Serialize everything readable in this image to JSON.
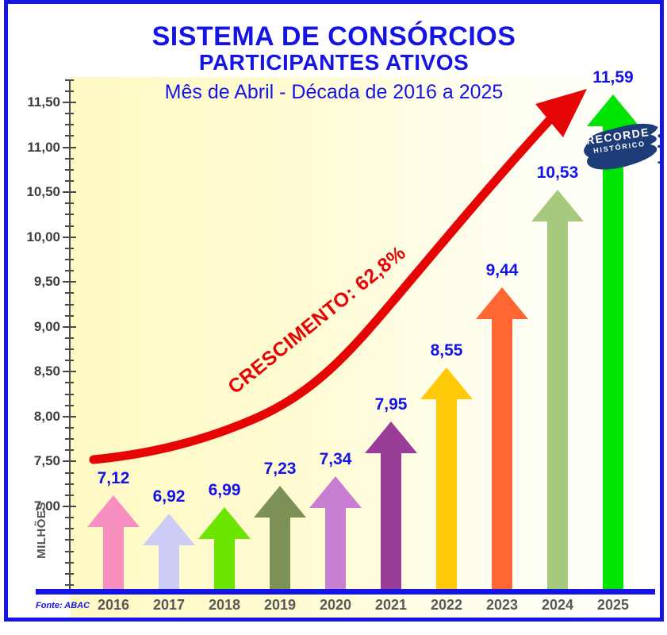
{
  "header": {
    "title": "SISTEMA DE CONSÓRCIOS",
    "subtitle": "PARTICIPANTES ATIVOS",
    "period": "Mês de Abril - Década de 2016 a 2025"
  },
  "chart_data": {
    "type": "bar",
    "title": "SISTEMA DE CONSÓRCIOS - PARTICIPANTES ATIVOS",
    "subtitle": "Mês de Abril - Década de 2016 a 2025",
    "categories": [
      "2016",
      "2017",
      "2018",
      "2019",
      "2020",
      "2021",
      "2022",
      "2023",
      "2024",
      "2025"
    ],
    "values": [
      7.12,
      6.92,
      6.99,
      7.23,
      7.34,
      7.95,
      8.55,
      9.44,
      10.53,
      11.59
    ],
    "value_labels": [
      "7,12",
      "6,92",
      "6,99",
      "7,23",
      "7,34",
      "7,95",
      "8,55",
      "9,44",
      "10,53",
      "11,59"
    ],
    "bar_colors": [
      "#F78FC0",
      "#CCCCF6",
      "#6CE500",
      "#7D9157",
      "#C97FD1",
      "#993D99",
      "#FFC907",
      "#FF6633",
      "#A6C97E",
      "#00E402"
    ],
    "ylabel": "MILHÕES",
    "ylim": [
      6.05,
      11.75
    ],
    "y_major_ticks": [
      7.0,
      7.5,
      8.0,
      8.5,
      9.0,
      9.5,
      10.0,
      10.5,
      11.0,
      11.5
    ],
    "y_major_tick_labels": [
      "7,00",
      "7,50",
      "8,00",
      "8,50",
      "9,00",
      "9,50",
      "10,00",
      "10,50",
      "11,00",
      "11,50"
    ],
    "y_minor_step": 0.125,
    "grid": false,
    "legend": false,
    "annotations": {
      "growth_label": "CRESCIMENTO: 62,8%",
      "record_badge_line1": "RECORDE",
      "record_badge_line2": "HISTÓRICO"
    }
  },
  "footer": {
    "source": "Fonte: ABAC"
  },
  "colors": {
    "accent_blue": "#1414E6",
    "trend_red": "#E60505",
    "badge_navy": "#1E3C78",
    "year_label_gray": "#595959",
    "axis_gray": "#3D3D3D",
    "plot_bg_left": "#FFF9C4",
    "plot_bg_right": "#FFFFFD"
  }
}
